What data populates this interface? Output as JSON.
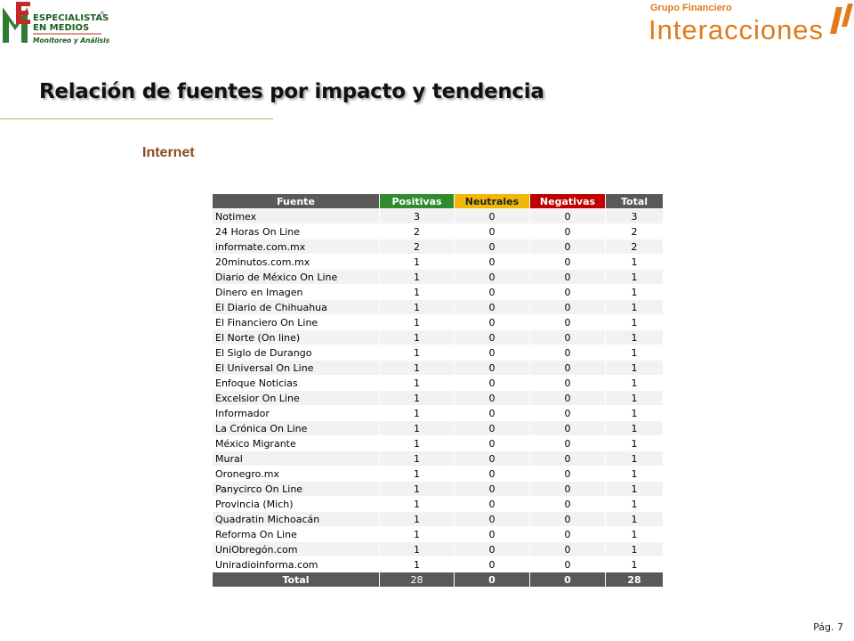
{
  "header": {
    "logo_left": {
      "line1": "ESPECIALISTAS",
      "line2": "EN MEDIOS",
      "line3": "Monitoreo y Análisis",
      "mark": "®"
    },
    "logo_right": {
      "line1": "Grupo Financiero",
      "line2": "Interacciones"
    }
  },
  "title": "Relación de fuentes por impacto y tendencia",
  "section": "Internet",
  "table": {
    "columns": [
      "Fuente",
      "Positivas",
      "Neutrales",
      "Negativas",
      "Total"
    ],
    "rows": [
      [
        "Notimex",
        3,
        0,
        0,
        3
      ],
      [
        "24 Horas On Line",
        2,
        0,
        0,
        2
      ],
      [
        "informate.com.mx",
        2,
        0,
        0,
        2
      ],
      [
        "20minutos.com.mx",
        1,
        0,
        0,
        1
      ],
      [
        "Diario de México On Line",
        1,
        0,
        0,
        1
      ],
      [
        "Dinero en Imagen",
        1,
        0,
        0,
        1
      ],
      [
        "El Diario de Chihuahua",
        1,
        0,
        0,
        1
      ],
      [
        "El Financiero On Line",
        1,
        0,
        0,
        1
      ],
      [
        "El Norte (On line)",
        1,
        0,
        0,
        1
      ],
      [
        "El Siglo de Durango",
        1,
        0,
        0,
        1
      ],
      [
        "El Universal On Line",
        1,
        0,
        0,
        1
      ],
      [
        "Enfoque Noticias",
        1,
        0,
        0,
        1
      ],
      [
        "Excelsior On Line",
        1,
        0,
        0,
        1
      ],
      [
        "Informador",
        1,
        0,
        0,
        1
      ],
      [
        "La Crónica On Line",
        1,
        0,
        0,
        1
      ],
      [
        "México Migrante",
        1,
        0,
        0,
        1
      ],
      [
        "Mural",
        1,
        0,
        0,
        1
      ],
      [
        "Oronegro.mx",
        1,
        0,
        0,
        1
      ],
      [
        "Panycirco On Line",
        1,
        0,
        0,
        1
      ],
      [
        "Provincia (Mich)",
        1,
        0,
        0,
        1
      ],
      [
        "Quadratin Michoacán",
        1,
        0,
        0,
        1
      ],
      [
        "Reforma On Line",
        1,
        0,
        0,
        1
      ],
      [
        "UniObregón.com",
        1,
        0,
        0,
        1
      ],
      [
        "Uniradioinforma.com",
        1,
        0,
        0,
        1
      ]
    ],
    "total": [
      "Total",
      28,
      0,
      0,
      28
    ]
  },
  "footer": {
    "page": "Pág. 7"
  }
}
